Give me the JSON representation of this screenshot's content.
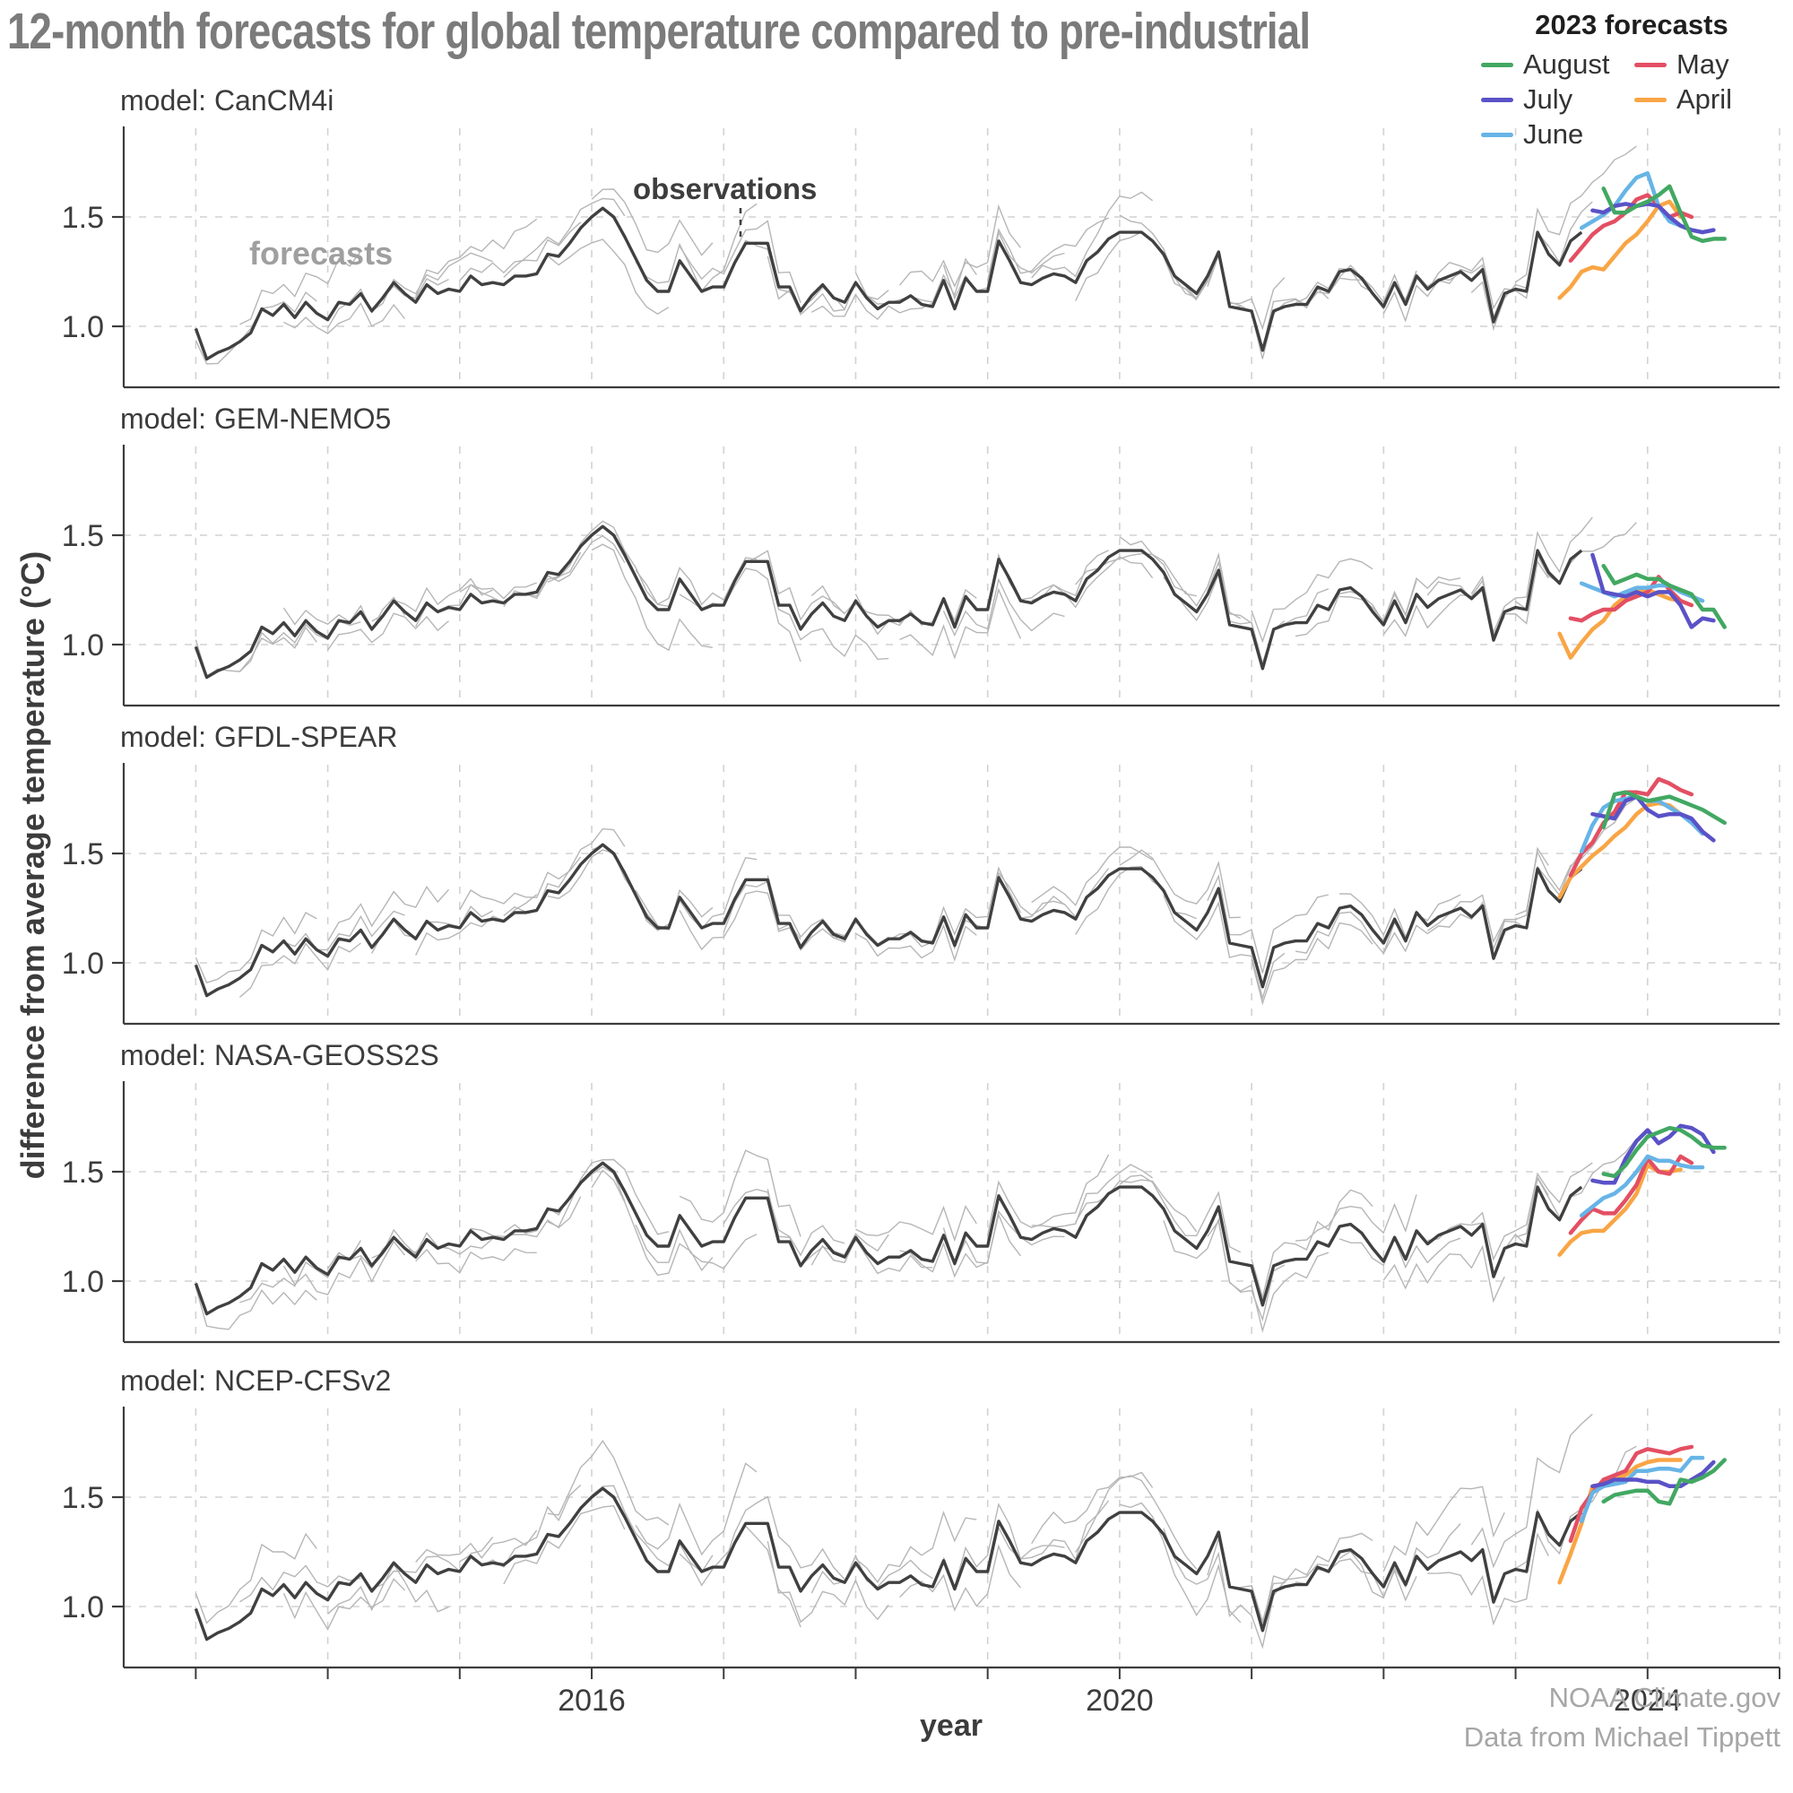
{
  "title": "12-month forecasts for global temperature compared to pre-industrial",
  "annotations": {
    "forecasts": "forecasts",
    "observations": "observations"
  },
  "axis": {
    "xlabel": "year",
    "ylabel": "difference from average temperature (°C)"
  },
  "attribution": {
    "line1": "NOAA Climate.gov",
    "line2": "Data from Michael Tippett"
  },
  "chart_data": {
    "type": "line",
    "title": "12-month forecasts for global temperature compared to pre-industrial",
    "xlabel": "year",
    "ylabel": "difference from average temperature (°C)",
    "x_range": [
      2012.454,
      2025.0
    ],
    "x_ticks_labeled": [
      2016,
      2020,
      2024
    ],
    "x_minor_ticks_every_years": 1,
    "y_range": [
      0.72,
      1.905
    ],
    "y_ticks": [
      1.0,
      1.5
    ],
    "grid": "dashed gray, vertical every year, horizontal at 1.0 and 1.5",
    "legend": {
      "title": "2023 forecasts",
      "entries": [
        {
          "label": "August",
          "color": "#42a862"
        },
        {
          "label": "July",
          "color": "#5a52c7"
        },
        {
          "label": "June",
          "color": "#67b4e7"
        },
        {
          "label": "May",
          "color": "#e34f63"
        },
        {
          "label": "April",
          "color": "#f9a545"
        }
      ]
    },
    "colors": {
      "observations": "#404040",
      "gray_forecasts": "#b6b6b6",
      "grid": "#d2d2d2",
      "axis": "#3c3c3c"
    },
    "observations": {
      "label": "observations",
      "start_year": 2013.0,
      "step_years": 0.083333,
      "values": [
        0.99,
        0.85,
        0.88,
        0.9,
        0.93,
        0.97,
        1.08,
        1.05,
        1.1,
        1.04,
        1.11,
        1.06,
        1.03,
        1.11,
        1.1,
        1.15,
        1.07,
        1.13,
        1.2,
        1.15,
        1.11,
        1.19,
        1.15,
        1.17,
        1.16,
        1.23,
        1.19,
        1.2,
        1.19,
        1.23,
        1.23,
        1.24,
        1.33,
        1.32,
        1.38,
        1.45,
        1.5,
        1.54,
        1.5,
        1.41,
        1.31,
        1.21,
        1.16,
        1.16,
        1.3,
        1.23,
        1.16,
        1.18,
        1.18,
        1.29,
        1.38,
        1.38,
        1.38,
        1.18,
        1.18,
        1.07,
        1.14,
        1.19,
        1.13,
        1.11,
        1.2,
        1.13,
        1.08,
        1.11,
        1.11,
        1.14,
        1.1,
        1.09,
        1.21,
        1.08,
        1.22,
        1.16,
        1.16,
        1.39,
        1.3,
        1.2,
        1.19,
        1.22,
        1.24,
        1.23,
        1.2,
        1.3,
        1.34,
        1.4,
        1.43,
        1.43,
        1.43,
        1.39,
        1.33,
        1.23,
        1.19,
        1.15,
        1.23,
        1.34,
        1.09,
        1.08,
        1.07,
        0.89,
        1.07,
        1.09,
        1.1,
        1.1,
        1.18,
        1.16,
        1.25,
        1.26,
        1.22,
        1.15,
        1.09,
        1.2,
        1.1,
        1.23,
        1.17,
        1.21,
        1.23,
        1.25,
        1.21,
        1.26,
        1.02,
        1.15,
        1.17,
        1.16,
        1.43,
        1.33,
        1.28,
        1.39,
        1.43
      ]
    },
    "forecast_start_times": {
      "April": 2023.3333,
      "May": 2023.4167,
      "June": 2023.5,
      "July": 2023.5833,
      "August": 2023.6667
    },
    "panels": [
      {
        "model": "model: CanCM4i",
        "gray_forecasts_spec": {
          "seed": 9,
          "count": 31,
          "start": 2013.0,
          "spacing_years": 0.3333,
          "length_months": 12,
          "noise": 0.085,
          "offset": 0.09,
          "bias": 0.03,
          "late_slope": 0.5
        },
        "forecasts_2023": {
          "April": [
            1.13,
            1.18,
            1.25,
            1.27,
            1.26,
            1.32,
            1.38,
            1.42,
            1.48,
            1.55,
            1.57,
            1.5
          ],
          "May": [
            1.3,
            1.36,
            1.42,
            1.46,
            1.48,
            1.52,
            1.58,
            1.6,
            1.55,
            1.5,
            1.52,
            1.5
          ],
          "June": [
            1.45,
            1.48,
            1.51,
            1.55,
            1.62,
            1.68,
            1.7,
            1.55,
            1.48,
            1.46,
            1.44,
            1.43
          ],
          "July": [
            1.53,
            1.52,
            1.55,
            1.56,
            1.55,
            1.56,
            1.55,
            1.5,
            1.46,
            1.44,
            1.43,
            1.44
          ],
          "August": [
            1.63,
            1.52,
            1.52,
            1.55,
            1.57,
            1.6,
            1.64,
            1.52,
            1.41,
            1.39,
            1.4,
            1.4
          ]
        }
      },
      {
        "model": "model: GEM-NEMO5",
        "gray_forecasts_spec": {
          "seed": 17,
          "count": 31,
          "start": 2013.0,
          "spacing_years": 0.3333,
          "length_months": 12,
          "noise": 0.08,
          "offset": 0.09,
          "bias": -0.01,
          "late_slope": 0.35
        },
        "forecasts_2023": {
          "April": [
            1.05,
            0.94,
            1.01,
            1.07,
            1.11,
            1.18,
            1.22,
            1.24,
            1.25,
            1.23,
            1.21,
            1.2
          ],
          "May": [
            1.12,
            1.11,
            1.14,
            1.16,
            1.16,
            1.2,
            1.22,
            1.24,
            1.31,
            1.25,
            1.2,
            1.18
          ],
          "June": [
            1.28,
            1.26,
            1.24,
            1.22,
            1.24,
            1.26,
            1.26,
            1.27,
            1.27,
            1.24,
            1.22,
            1.2
          ],
          "July": [
            1.41,
            1.24,
            1.23,
            1.22,
            1.24,
            1.22,
            1.24,
            1.24,
            1.18,
            1.08,
            1.12,
            1.11
          ],
          "August": [
            1.36,
            1.28,
            1.3,
            1.32,
            1.3,
            1.3,
            1.27,
            1.25,
            1.23,
            1.16,
            1.16,
            1.08
          ]
        }
      },
      {
        "model": "model: GFDL-SPEAR",
        "gray_forecasts_spec": {
          "seed": 5,
          "count": 31,
          "start": 2013.0,
          "spacing_years": 0.3333,
          "length_months": 12,
          "noise": 0.07,
          "offset": 0.09,
          "bias": 0.07,
          "late_slope": 0.6
        },
        "forecasts_2023": {
          "April": [
            1.3,
            1.39,
            1.44,
            1.49,
            1.53,
            1.58,
            1.62,
            1.68,
            1.72,
            1.73,
            1.72,
            1.68
          ],
          "May": [
            1.4,
            1.5,
            1.55,
            1.64,
            1.69,
            1.78,
            1.78,
            1.77,
            1.84,
            1.82,
            1.79,
            1.77
          ],
          "June": [
            1.51,
            1.63,
            1.71,
            1.74,
            1.75,
            1.76,
            1.74,
            1.74,
            1.71,
            1.68,
            1.64,
            1.59
          ],
          "July": [
            1.68,
            1.67,
            1.66,
            1.74,
            1.76,
            1.7,
            1.67,
            1.68,
            1.68,
            1.66,
            1.6,
            1.56
          ],
          "August": [
            1.62,
            1.77,
            1.78,
            1.76,
            1.74,
            1.75,
            1.76,
            1.74,
            1.72,
            1.7,
            1.67,
            1.64
          ]
        }
      },
      {
        "model": "model: NASA-GEOSS2S",
        "gray_forecasts_spec": {
          "seed": 27,
          "count": 31,
          "start": 2013.0,
          "spacing_years": 0.3333,
          "length_months": 12,
          "noise": 0.09,
          "offset": 0.09,
          "bias": 0.05,
          "late_slope": 0.6
        },
        "forecasts_2023": {
          "April": [
            1.12,
            1.18,
            1.22,
            1.23,
            1.23,
            1.28,
            1.33,
            1.4,
            1.53,
            1.5,
            1.5,
            1.51
          ],
          "May": [
            1.22,
            1.28,
            1.33,
            1.31,
            1.31,
            1.37,
            1.44,
            1.56,
            1.5,
            1.49,
            1.57,
            1.54
          ],
          "June": [
            1.3,
            1.34,
            1.38,
            1.4,
            1.44,
            1.5,
            1.57,
            1.55,
            1.55,
            1.53,
            1.52,
            1.52
          ],
          "July": [
            1.46,
            1.45,
            1.45,
            1.56,
            1.64,
            1.69,
            1.63,
            1.66,
            1.71,
            1.7,
            1.67,
            1.59
          ],
          "August": [
            1.49,
            1.48,
            1.53,
            1.6,
            1.66,
            1.68,
            1.7,
            1.69,
            1.66,
            1.62,
            1.61,
            1.61
          ]
        }
      },
      {
        "model": "model: NCEP-CFSv2",
        "gray_forecasts_spec": {
          "seed": 41,
          "count": 31,
          "start": 2013.0,
          "spacing_years": 0.3333,
          "length_months": 12,
          "noise": 0.12,
          "offset": 0.1,
          "bias": 0.04,
          "late_slope": 0.9
        },
        "forecasts_2023": {
          "April": [
            1.11,
            1.24,
            1.38,
            1.55,
            1.56,
            1.58,
            1.6,
            1.64,
            1.66,
            1.67,
            1.67,
            1.67
          ],
          "May": [
            1.3,
            1.45,
            1.52,
            1.58,
            1.6,
            1.62,
            1.7,
            1.72,
            1.71,
            1.7,
            1.72,
            1.73
          ],
          "June": [
            1.39,
            1.52,
            1.55,
            1.56,
            1.57,
            1.62,
            1.62,
            1.63,
            1.63,
            1.62,
            1.68,
            1.68
          ],
          "July": [
            1.55,
            1.56,
            1.58,
            1.58,
            1.58,
            1.57,
            1.57,
            1.55,
            1.55,
            1.58,
            1.61,
            1.66
          ],
          "August": [
            1.48,
            1.51,
            1.52,
            1.53,
            1.53,
            1.48,
            1.47,
            1.58,
            1.57,
            1.59,
            1.62,
            1.67
          ]
        }
      }
    ]
  }
}
